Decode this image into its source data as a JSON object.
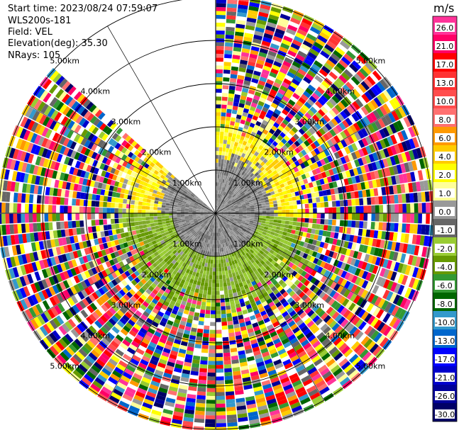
{
  "info": {
    "start_time": "Start time: 2023/08/24 07:59:07",
    "instrument": "WLS200s-181",
    "field": "Field: VEL",
    "elevation": "Elevation(deg): 35.30",
    "nrays": "NRays: 105"
  },
  "chart_data": {
    "type": "ppi",
    "field": "VEL",
    "colorbar": {
      "unit": "m/s",
      "range": [
        -30,
        30
      ],
      "tick_labels": [
        "26.0",
        "21.0",
        "17.0",
        "13.0",
        "10.0",
        "8.0",
        "6.0",
        "4.0",
        "2.0",
        "1.0",
        "0.0",
        "-1.0",
        "-2.0",
        "-4.0",
        "-6.0",
        "-8.0",
        "-10.0",
        "-13.0",
        "-17.0",
        "-21.0",
        "-26.0",
        "-30.0"
      ],
      "colors": [
        "#ff3399",
        "#ff0066",
        "#ff0000",
        "#ff3333",
        "#ff4d4d",
        "#ff7070",
        "#ff9900",
        "#ffcc00",
        "#ffff00",
        "#ffff99",
        "#999999",
        "#666666",
        "#99cc33",
        "#669900",
        "#339933",
        "#006600",
        "#3399cc",
        "#0066cc",
        "#0000ff",
        "#0000cc",
        "#000099",
        "#000066"
      ]
    },
    "range_rings_km": [
      1,
      2,
      3,
      4,
      5
    ],
    "ring_labels": [
      "1.00km",
      "2.00km",
      "3.00km",
      "4.00km",
      "5.00km"
    ],
    "sector_gap_deg": [
      0,
      312
    ],
    "near_field": {
      "inbound_color_band": [
        "-1.0",
        "-4.0"
      ],
      "outbound_color_band": [
        "0.0",
        "2.0"
      ],
      "noise_beyond_km": 2.2
    }
  }
}
